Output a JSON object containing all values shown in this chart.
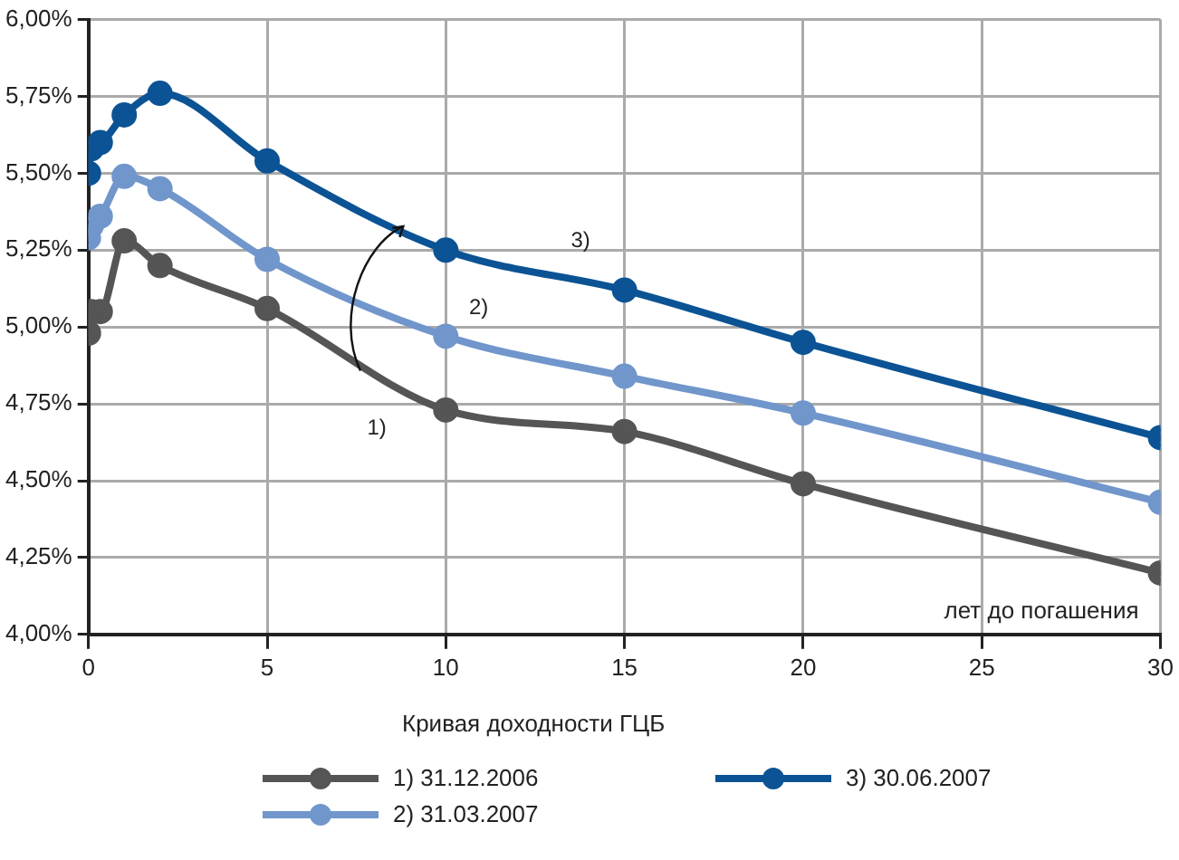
{
  "chart_data": {
    "type": "line",
    "xlabel": "лет до погашения",
    "legend_title": "Кривая доходности ГЦБ",
    "legend": "bottom",
    "grid": true,
    "marker": "circle",
    "line_style": "solid",
    "xlim": [
      0,
      30
    ],
    "xticks": [
      0,
      5,
      10,
      15,
      20,
      25,
      30
    ],
    "ylim": [
      4,
      6
    ],
    "yticks": [
      {
        "value": 4,
        "label": "4,00%"
      },
      {
        "value": 4.25,
        "label": "4,25%"
      },
      {
        "value": 4.5,
        "label": "4,50%"
      },
      {
        "value": 4.75,
        "label": "4,75%"
      },
      {
        "value": 5,
        "label": "5,00%"
      },
      {
        "value": 5.25,
        "label": "5,25%"
      },
      {
        "value": 5.5,
        "label": "5,50%"
      },
      {
        "value": 5.75,
        "label": "5,75%"
      },
      {
        "value": 6,
        "label": "6,00%"
      }
    ],
    "x": [
      0,
      0.08,
      0.33,
      1,
      2,
      5,
      10,
      15,
      20,
      30
    ],
    "series": [
      {
        "name": "1) 31.12.2006",
        "color": "#555555",
        "values": [
          4.98,
          5.05,
          5.05,
          5.28,
          5.2,
          5.06,
          4.73,
          4.66,
          4.49,
          4.2
        ]
      },
      {
        "name": "2) 31.03.2007",
        "color": "#7096cc",
        "values": [
          5.29,
          5.33,
          5.36,
          5.49,
          5.45,
          5.22,
          4.97,
          4.84,
          4.72,
          4.43
        ]
      },
      {
        "name": "3) 30.06.2007",
        "color": "#0b5394",
        "values": [
          5.5,
          5.58,
          5.6,
          5.69,
          5.76,
          5.54,
          5.25,
          5.12,
          4.95,
          4.64
        ]
      }
    ],
    "annotations": [
      "1)",
      "2)",
      "3)"
    ]
  }
}
